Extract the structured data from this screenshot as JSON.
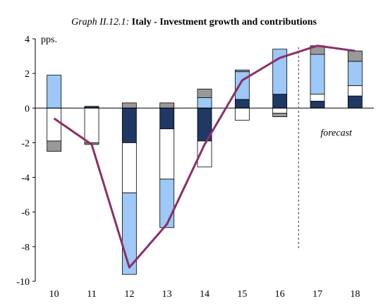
{
  "title": {
    "prefix": "Graph II.12.1:",
    "main": "Italy -  Investment growth and contributions"
  },
  "chart_data": {
    "type": "bar",
    "stacked": true,
    "title": "Graph II.12.1: Italy -  Investment growth and contributions",
    "ylabel": "pps.",
    "xlabel": "",
    "categories": [
      "10",
      "11",
      "12",
      "13",
      "14",
      "15",
      "16",
      "17",
      "18"
    ],
    "ylim": [
      -10,
      4
    ],
    "yticks": [
      4,
      2,
      0,
      -2,
      -4,
      -6,
      -8,
      -10
    ],
    "annotation": "forecast",
    "forecast_divider_between": [
      "16",
      "17"
    ],
    "colors": {
      "navy": "#1f3864",
      "lightblue": "#9dc8f7",
      "white": "#ffffff",
      "grey": "#999999",
      "line": "#8b3066"
    },
    "series": [
      {
        "color": "#1f3864",
        "values": [
          0.0,
          0.1,
          -2.0,
          -1.2,
          -1.9,
          0.5,
          0.8,
          0.4,
          0.7
        ]
      },
      {
        "color": "#ffffff",
        "values": [
          -1.9,
          -2.0,
          -2.9,
          -2.9,
          -1.5,
          -0.7,
          -0.3,
          0.4,
          0.6
        ]
      },
      {
        "color": "#9dc8f7",
        "values": [
          1.9,
          0.0,
          -4.7,
          -2.8,
          0.6,
          1.6,
          2.6,
          2.3,
          1.4
        ]
      },
      {
        "color": "#999999",
        "values": [
          -0.6,
          -0.1,
          0.3,
          0.3,
          0.5,
          0.1,
          -0.2,
          0.5,
          0.6
        ]
      }
    ],
    "line": {
      "color": "#8b3066",
      "values": [
        -0.6,
        -2.1,
        -9.2,
        -6.7,
        -2.1,
        1.6,
        2.9,
        3.6,
        3.3
      ]
    }
  }
}
